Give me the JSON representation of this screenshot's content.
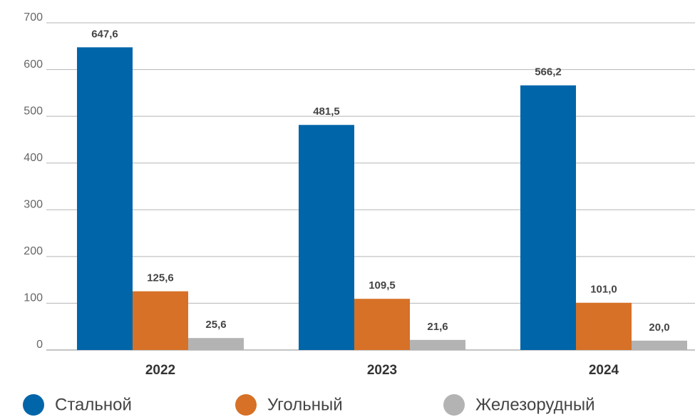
{
  "chart_data": {
    "type": "bar",
    "categories": [
      "2022",
      "2023",
      "2024"
    ],
    "series": [
      {
        "name": "Стальной",
        "color": "#0065a9",
        "values": [
          647.6,
          481.5,
          566.2
        ],
        "value_labels": [
          "647,6",
          "481,5",
          "566,2"
        ]
      },
      {
        "name": "Угольный",
        "color": "#d67127",
        "values": [
          125.6,
          109.5,
          101.0
        ],
        "value_labels": [
          "125,6",
          "109,5",
          "101,0"
        ]
      },
      {
        "name": "Железорудный",
        "color": "#b3b3b3",
        "values": [
          25.6,
          21.6,
          20.0
        ],
        "value_labels": [
          "25,6",
          "21,6",
          "20,0"
        ]
      }
    ],
    "ylim": [
      0,
      700
    ],
    "yticks": [
      0,
      100,
      200,
      300,
      400,
      500,
      600,
      700
    ],
    "grid": true
  }
}
